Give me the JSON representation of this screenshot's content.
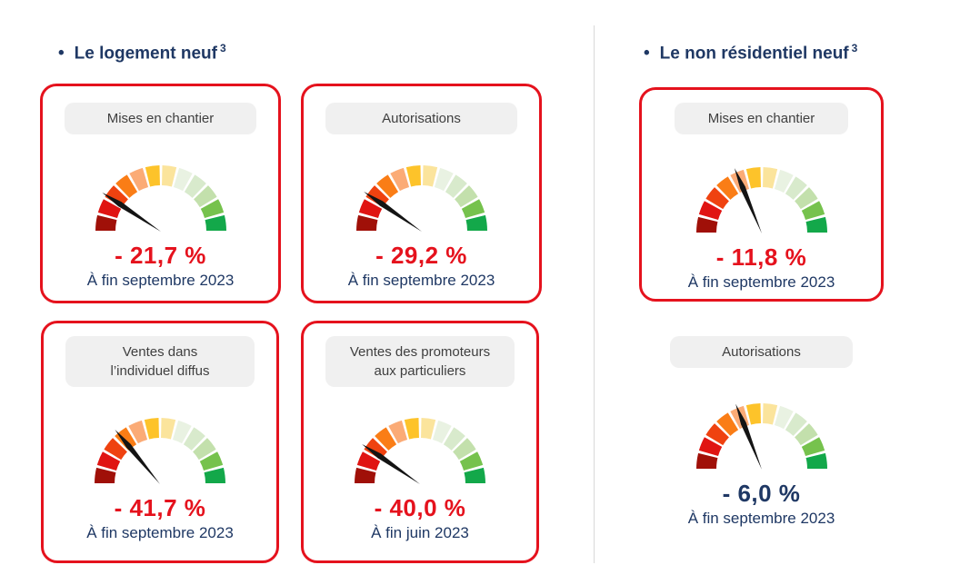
{
  "palette": {
    "navy": "#1f3864",
    "card_border": "#e5121d",
    "value_red": "#e5121d",
    "pill_bg": "#f0f0f0",
    "pill_text": "#3f3f3f",
    "divider": "#d9d9d9",
    "needle": "#141414"
  },
  "gauge_segment_colors": [
    "#a01008",
    "#e01412",
    "#ef4210",
    "#fa7d16",
    "#fbab76",
    "#fdc32a",
    "#fbe49c",
    "#e9f2e2",
    "#d8eacc",
    "#c3e0ac",
    "#76c24d",
    "#13a84a"
  ],
  "sections": [
    {
      "bullet": "•",
      "title": "Le logement neuf",
      "sup": "3"
    },
    {
      "bullet": "•",
      "title": "Le non résidentiel neuf",
      "sup": "3"
    }
  ],
  "chart_data": [
    {
      "type": "gauge",
      "section": "Le logement neuf",
      "title_lines": [
        "Mises en chantier"
      ],
      "value_pct": -21.7,
      "value_display": "- 21,7 %",
      "period": "À fin septembre 2023",
      "needle_angle_deg": 147,
      "card_border": true,
      "value_color": "#e5121d",
      "scale": "red-to-green, 12 segments, 180°"
    },
    {
      "type": "gauge",
      "section": "Le logement neuf",
      "title_lines": [
        "Autorisations"
      ],
      "value_pct": -29.2,
      "value_display": "- 29,2 %",
      "period": "À fin septembre 2023",
      "needle_angle_deg": 146,
      "card_border": true,
      "value_color": "#e5121d",
      "scale": "red-to-green, 12 segments, 180°"
    },
    {
      "type": "gauge",
      "section": "Le logement neuf",
      "title_lines": [
        "Ventes dans",
        "l’individuel diffus"
      ],
      "value_pct": -41.7,
      "value_display": "- 41,7 %",
      "period": "À fin septembre 2023",
      "needle_angle_deg": 130,
      "card_border": true,
      "value_color": "#e5121d",
      "scale": "red-to-green, 12 segments, 180°"
    },
    {
      "type": "gauge",
      "section": "Le logement neuf",
      "title_lines": [
        "Ventes des promoteurs",
        "aux particuliers"
      ],
      "value_pct": -40.0,
      "value_display": "- 40,0 %",
      "period": "À fin juin 2023",
      "needle_angle_deg": 146,
      "card_border": true,
      "value_color": "#e5121d",
      "scale": "red-to-green, 12 segments, 180°"
    },
    {
      "type": "gauge",
      "section": "Le non résidentiel neuf",
      "title_lines": [
        "Mises en chantier"
      ],
      "value_pct": -11.8,
      "value_display": "- 11,8 %",
      "period": "À fin septembre 2023",
      "needle_angle_deg": 113,
      "card_border": true,
      "value_color": "#e5121d",
      "scale": "red-to-green, 12 segments, 180°"
    },
    {
      "type": "gauge",
      "section": "Le non résidentiel neuf",
      "title_lines": [
        "Autorisations"
      ],
      "value_pct": -6.0,
      "value_display": "- 6,0 %",
      "period": "À fin septembre 2023",
      "needle_angle_deg": 112,
      "card_border": false,
      "value_color": "#1f3864",
      "scale": "red-to-green, 12 segments, 180°"
    }
  ]
}
